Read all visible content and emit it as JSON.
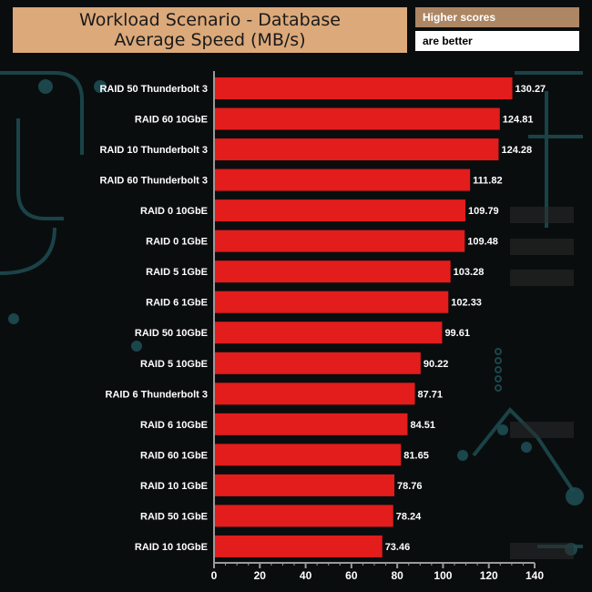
{
  "title": {
    "line1": "Workload Scenario - Database",
    "line2": "Average Speed (MB/s)"
  },
  "legend": {
    "higher": "Higher scores",
    "better": "are better"
  },
  "colors": {
    "bar": "#e31c1c",
    "title_bg": "#dca97a",
    "legend_bg": "#ad8664",
    "background": "#0a0d0e",
    "circuit": "#1d4d52"
  },
  "chart_data": {
    "type": "bar",
    "orientation": "horizontal",
    "title": "Workload Scenario - Database Average Speed (MB/s)",
    "xlim": [
      0,
      140
    ],
    "x_ticks": [
      0,
      20,
      40,
      60,
      80,
      100,
      120,
      140
    ],
    "categories": [
      "RAID 50 Thunderbolt 3",
      "RAID 60 10GbE",
      "RAID 10 Thunderbolt 3",
      "RAID 60 Thunderbolt 3",
      "RAID 0 10GbE",
      "RAID 0 1GbE",
      "RAID 5 1GbE",
      "RAID 6 1GbE",
      "RAID 50 10GbE",
      "RAID 5 10GbE",
      "RAID 6 Thunderbolt 3",
      "RAID 6 10GbE",
      "RAID 60 1GbE",
      "RAID 10 1GbE",
      "RAID 50 1GbE",
      "RAID 10 10GbE"
    ],
    "values": [
      130.27,
      124.81,
      124.28,
      111.82,
      109.79,
      109.48,
      103.28,
      102.33,
      99.61,
      90.22,
      87.71,
      84.51,
      81.65,
      78.76,
      78.24,
      73.46
    ],
    "value_labels": [
      "130.27",
      "124.81",
      "124.28",
      "111.82",
      "109.79",
      "109.48",
      "103.28",
      "102.33",
      "99.61",
      "90.22",
      "87.71",
      "84.51",
      "81.65",
      "78.76",
      "78.24",
      "73.46"
    ]
  }
}
